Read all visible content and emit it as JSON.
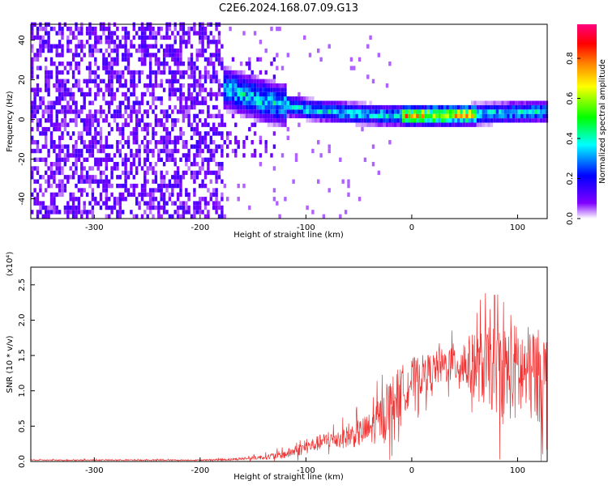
{
  "title": "C2E6.2024.168.07.09.G13",
  "chart_data": [
    {
      "type": "heatmap",
      "xlabel": "Height of straight line (km)",
      "ylabel": "Frequency (Hz)",
      "xlim": [
        -360,
        128
      ],
      "ylim": [
        -50,
        48
      ],
      "xticks": [
        -300,
        -200,
        -100,
        0,
        100
      ],
      "yticks": [
        -40,
        -20,
        0,
        20,
        40
      ],
      "colorbar": {
        "label": "Normalized spectral amplitude",
        "range": [
          0,
          0.97
        ],
        "ticks": [
          "0.0",
          "0.2",
          "0.4",
          "0.6",
          "0.8"
        ],
        "colors": [
          "#ffffff",
          "#8000ff",
          "#0000ff",
          "#00ffff",
          "#00ff00",
          "#ffff00",
          "#ff8000",
          "#ff0000",
          "#ff0080"
        ]
      },
      "regions": [
        {
          "x": [
            -360,
            -180
          ],
          "freq": [
            -50,
            48
          ],
          "amplitude": 0.15,
          "description_value": "broadband noise"
        },
        {
          "x": [
            -180,
            -130
          ],
          "freq": [
            -20,
            30
          ],
          "amplitude": 0.12
        },
        {
          "x": [
            -180,
            128
          ],
          "ridge_center_hz": [
            15,
            8,
            4,
            2,
            1,
            1,
            1,
            2,
            3
          ],
          "ridge_x": [
            -180,
            -140,
            -100,
            -60,
            -20,
            0,
            40,
            80,
            128
          ],
          "amplitude_peak": 0.9
        }
      ]
    },
    {
      "type": "line",
      "xlabel": "Height of straight line (km)",
      "ylabel": "SNR (10 * v/v)",
      "y_multiplier": "(x10⁴)",
      "xlim": [
        -360,
        128
      ],
      "ylim": [
        0,
        2.75
      ],
      "xticks": [
        -300,
        -200,
        -100,
        0,
        100
      ],
      "yticks": [
        "0.0",
        "0.5",
        "1.0",
        "1.5",
        "2.0",
        "2.5"
      ],
      "series": [
        {
          "color": "#ee3333",
          "x": [
            -360,
            -300,
            -250,
            -200,
            -170,
            -140,
            -120,
            -100,
            -80,
            -60,
            -40,
            -30,
            -20,
            -10,
            0,
            20,
            40,
            60,
            80,
            100,
            128
          ],
          "y": [
            0.02,
            0.02,
            0.02,
            0.02,
            0.03,
            0.06,
            0.1,
            0.2,
            0.3,
            0.35,
            0.45,
            0.6,
            0.8,
            1.0,
            1.15,
            1.3,
            1.4,
            1.35,
            1.3,
            1.25,
            1.2
          ],
          "spread": [
            0.01,
            0.01,
            0.01,
            0.01,
            0.02,
            0.04,
            0.08,
            0.12,
            0.15,
            0.2,
            0.3,
            0.4,
            0.5,
            0.45,
            0.4,
            0.3,
            0.35,
            0.6,
            0.8,
            0.9,
            0.8
          ]
        }
      ]
    }
  ]
}
